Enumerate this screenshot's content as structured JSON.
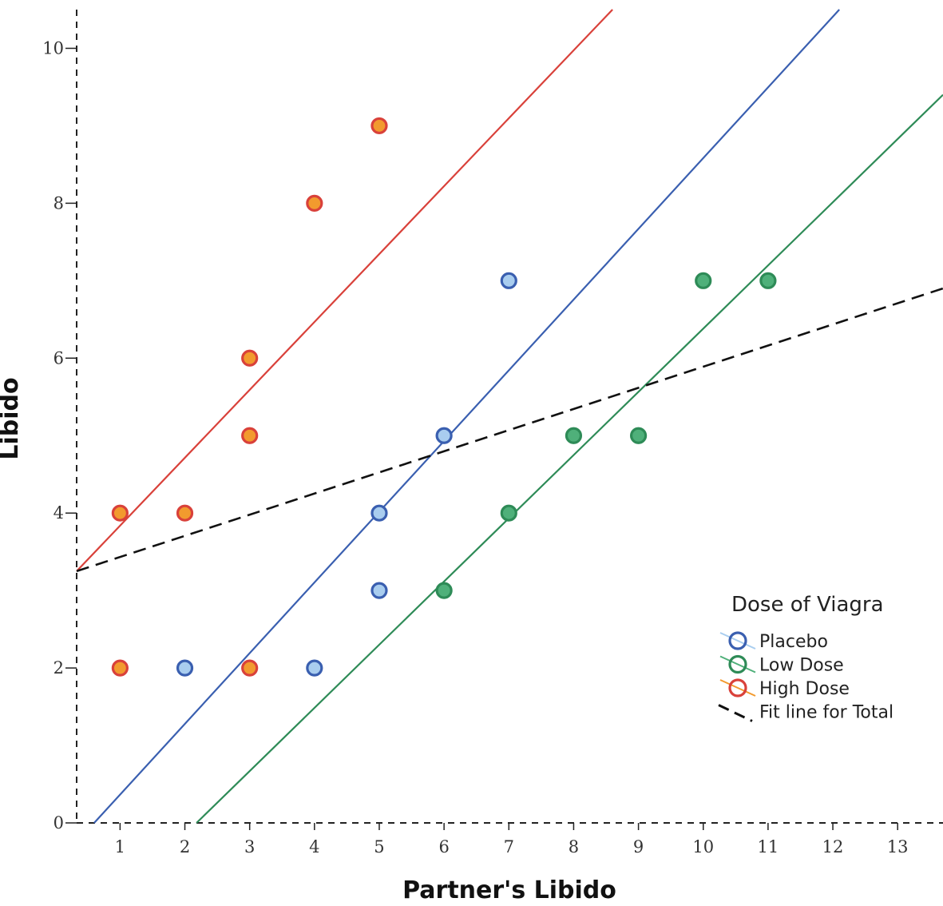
{
  "chart_data": {
    "type": "scatter",
    "title": "",
    "xlabel": "Partner's Libido",
    "ylabel": "Libido",
    "xlim": [
      0.33,
      13.7
    ],
    "ylim": [
      0,
      10.5
    ],
    "x_ticks": [
      "1",
      "2",
      "3",
      "4",
      "5",
      "6",
      "7",
      "8",
      "9",
      "10",
      "11",
      "12",
      "13"
    ],
    "y_ticks": [
      "0",
      "2",
      "4",
      "6",
      "8",
      "10"
    ],
    "grid": false,
    "legend": {
      "title": "Dose of Viagra",
      "position": "bottom-right",
      "entries": [
        "Placebo",
        "Low Dose",
        "High Dose",
        "Fit line for Total"
      ]
    },
    "series": [
      {
        "name": "Placebo",
        "color": "#3a5fb0",
        "fill": "#a9cdef",
        "points": [
          [
            2,
            2
          ],
          [
            4,
            2
          ],
          [
            5,
            3
          ],
          [
            5,
            4
          ],
          [
            6,
            5
          ],
          [
            7,
            7
          ]
        ],
        "fit_line": [
          [
            0.6,
            0
          ],
          [
            12.1,
            10.5
          ]
        ]
      },
      {
        "name": "Low Dose",
        "color": "#2e8b57",
        "fill": "#4fb07a",
        "points": [
          [
            6,
            3
          ],
          [
            7,
            4
          ],
          [
            8,
            5
          ],
          [
            9,
            5
          ],
          [
            10,
            7
          ],
          [
            11,
            7
          ]
        ],
        "fit_line": [
          [
            2.18,
            0
          ],
          [
            13.7,
            9.4
          ]
        ]
      },
      {
        "name": "High Dose",
        "color": "#d9413a",
        "fill": "#f29a2e",
        "points": [
          [
            1,
            2
          ],
          [
            1,
            4
          ],
          [
            2,
            4
          ],
          [
            3,
            2
          ],
          [
            3,
            5
          ],
          [
            3,
            6
          ],
          [
            4,
            8
          ],
          [
            5,
            9
          ]
        ],
        "fit_line": [
          [
            0.33,
            3.25
          ],
          [
            8.6,
            10.5
          ]
        ]
      }
    ],
    "total_fit_line": {
      "name": "Fit line for Total",
      "color": "#111111",
      "points": [
        [
          0.33,
          3.25
        ],
        [
          13.7,
          6.9
        ]
      ]
    }
  }
}
